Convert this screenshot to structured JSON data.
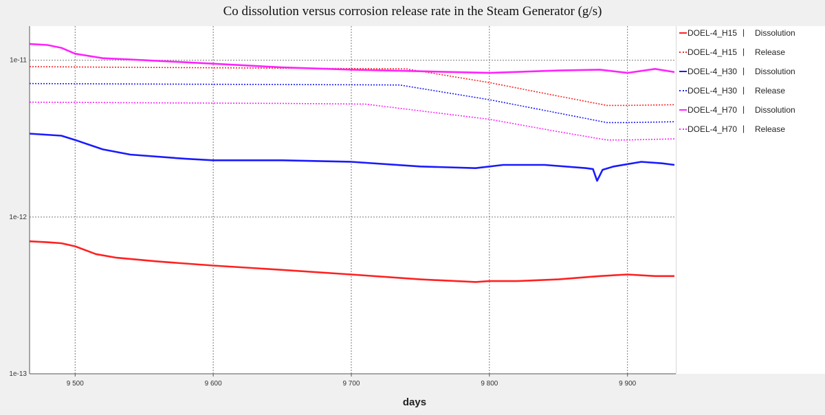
{
  "chart_data": {
    "type": "line",
    "title": "Co  dissolution versus corrosion release rate in the Steam Generator  (g/s)",
    "xlabel": "days",
    "ylabel": "",
    "x_scale": "linear",
    "y_scale": "log",
    "xlim": [
      9467,
      9935
    ],
    "ylim": [
      1e-13,
      1.65e-11
    ],
    "x_ticks": [
      9500,
      9600,
      9700,
      9800,
      9900
    ],
    "x_tick_labels": [
      "9 500",
      "9 600",
      "9 700",
      "9 800",
      "9 900"
    ],
    "y_ticks": [
      1e-13,
      1e-12,
      1e-11
    ],
    "y_tick_labels": [
      "1e-13",
      "1e-12",
      "1e-11"
    ],
    "grid": true,
    "legend_position": "right",
    "series": [
      {
        "name": "DOEL-4_H15",
        "kind": "Dissolution",
        "color": "#ff2020",
        "style": "solid",
        "x": [
          9467,
          9480,
          9490,
          9500,
          9515,
          9530,
          9560,
          9600,
          9650,
          9700,
          9750,
          9790,
          9800,
          9820,
          9850,
          9880,
          9900,
          9920,
          9934
        ],
        "y": [
          7e-13,
          6.9e-13,
          6.8e-13,
          6.5e-13,
          5.8e-13,
          5.5e-13,
          5.2e-13,
          4.9e-13,
          4.6e-13,
          4.3e-13,
          4e-13,
          3.85e-13,
          3.9e-13,
          3.9e-13,
          4e-13,
          4.2e-13,
          4.3e-13,
          4.2e-13,
          4.2e-13
        ]
      },
      {
        "name": "DOEL-4_H15",
        "kind": "Release",
        "color": "#ff2020",
        "style": "dotted",
        "x": [
          9467,
          9550,
          9650,
          9740,
          9800,
          9850,
          9885,
          9900,
          9934
        ],
        "y": [
          9.1e-12,
          9e-12,
          8.9e-12,
          8.8e-12,
          7.2e-12,
          5.9e-12,
          5.15e-12,
          5.15e-12,
          5.2e-12
        ]
      },
      {
        "name": "DOEL-4_H30",
        "kind": "Dissolution",
        "color": "#1a1aff",
        "style": "solid",
        "x": [
          9467,
          9490,
          9500,
          9520,
          9540,
          9580,
          9600,
          9650,
          9700,
          9750,
          9790,
          9810,
          9840,
          9870,
          9875,
          9878,
          9882,
          9890,
          9910,
          9925,
          9934
        ],
        "y": [
          3.4e-12,
          3.3e-12,
          3.1e-12,
          2.7e-12,
          2.5e-12,
          2.35e-12,
          2.3e-12,
          2.3e-12,
          2.25e-12,
          2.1e-12,
          2.05e-12,
          2.15e-12,
          2.15e-12,
          2.05e-12,
          2.02e-12,
          1.7e-12,
          2e-12,
          2.1e-12,
          2.25e-12,
          2.2e-12,
          2.15e-12
        ]
      },
      {
        "name": "DOEL-4_H30",
        "kind": "Release",
        "color": "#1a1aff",
        "style": "dotted",
        "x": [
          9467,
          9550,
          9650,
          9735,
          9800,
          9850,
          9885,
          9900,
          9934
        ],
        "y": [
          7.1e-12,
          7.05e-12,
          7e-12,
          6.95e-12,
          5.6e-12,
          4.6e-12,
          4e-12,
          4e-12,
          4.05e-12
        ]
      },
      {
        "name": "DOEL-4_H70",
        "kind": "Dissolution",
        "color": "#ff22ff",
        "style": "solid",
        "x": [
          9467,
          9480,
          9490,
          9500,
          9520,
          9550,
          9600,
          9650,
          9700,
          9750,
          9800,
          9850,
          9880,
          9900,
          9920,
          9934
        ],
        "y": [
          1.27e-11,
          1.25e-11,
          1.2e-11,
          1.1e-11,
          1.03e-11,
          1e-11,
          9.5e-12,
          9e-12,
          8.7e-12,
          8.5e-12,
          8.3e-12,
          8.6e-12,
          8.7e-12,
          8.3e-12,
          8.8e-12,
          8.4e-12
        ]
      },
      {
        "name": "DOEL-4_H70",
        "kind": "Release",
        "color": "#ff22ff",
        "style": "dotted",
        "x": [
          9467,
          9550,
          9650,
          9710,
          9800,
          9850,
          9885,
          9900,
          9934
        ],
        "y": [
          5.4e-12,
          5.35e-12,
          5.3e-12,
          5.25e-12,
          4.2e-12,
          3.5e-12,
          3.1e-12,
          3.1e-12,
          3.15e-12
        ]
      }
    ]
  }
}
